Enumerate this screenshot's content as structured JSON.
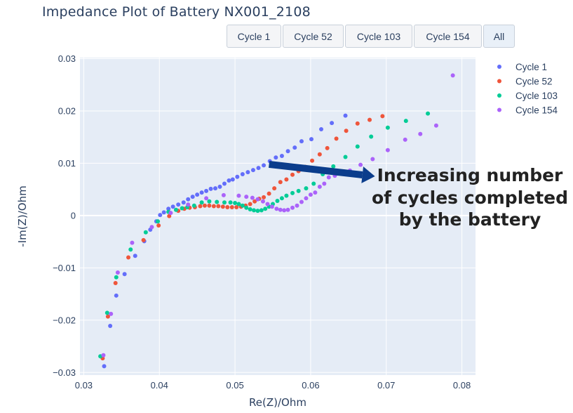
{
  "title": "Impedance Plot of Battery NX001_2108",
  "buttons": [
    {
      "label": "Cycle 1",
      "active": false
    },
    {
      "label": "Cycle 52",
      "active": false
    },
    {
      "label": "Cycle 103",
      "active": false
    },
    {
      "label": "Cycle 154",
      "active": false
    },
    {
      "label": "All",
      "active": true
    }
  ],
  "annotation": {
    "lines": [
      "Increasing number",
      "of cycles completed",
      "by the battery"
    ],
    "arrow_color": "#0b3d8c",
    "arrow_from": [
      0.0545,
      0.0098
    ],
    "arrow_to": [
      0.0685,
      0.0075
    ]
  },
  "chart_data": {
    "type": "scatter",
    "title": "Impedance Plot of Battery NX001_2108",
    "xlabel": "Re(Z)/Ohm",
    "ylabel": "-Im(Z)/Ohm",
    "xlim": [
      0.0295,
      0.0818
    ],
    "ylim": [
      -0.0305,
      0.0302
    ],
    "xticks": [
      0.03,
      0.04,
      0.05,
      0.06,
      0.07,
      0.08
    ],
    "xtick_labels": [
      "0.03",
      "0.04",
      "0.05",
      "0.06",
      "0.07",
      "0.08"
    ],
    "yticks": [
      -0.03,
      -0.02,
      -0.01,
      0,
      0.01,
      0.02,
      0.03
    ],
    "ytick_labels": [
      "−0.03",
      "−0.02",
      "−0.01",
      "0",
      "0.01",
      "0.02",
      "0.03"
    ],
    "grid": true,
    "legend_position": "top-right",
    "plot_bg": "#e5ecf6",
    "series": [
      {
        "name": "Cycle 1",
        "color": "#636efa",
        "points": [
          [
            0.0327,
            -0.0288
          ],
          [
            0.0335,
            -0.0211
          ],
          [
            0.0343,
            -0.0153
          ],
          [
            0.0354,
            -0.0112
          ],
          [
            0.0368,
            -0.0077
          ],
          [
            0.038,
            -0.0049
          ],
          [
            0.0388,
            -0.0027
          ],
          [
            0.0396,
            -0.0011
          ],
          [
            0.0401,
            0.0001
          ],
          [
            0.0406,
            0.0006
          ],
          [
            0.0412,
            0.0013
          ],
          [
            0.0418,
            0.0017
          ],
          [
            0.0425,
            0.0021
          ],
          [
            0.0432,
            0.0025
          ],
          [
            0.0438,
            0.0031
          ],
          [
            0.0444,
            0.0036
          ],
          [
            0.045,
            0.004
          ],
          [
            0.0456,
            0.0044
          ],
          [
            0.0462,
            0.0047
          ],
          [
            0.0468,
            0.0051
          ],
          [
            0.0474,
            0.0052
          ],
          [
            0.048,
            0.0055
          ],
          [
            0.0486,
            0.0061
          ],
          [
            0.0492,
            0.0067
          ],
          [
            0.0497,
            0.0069
          ],
          [
            0.0503,
            0.0074
          ],
          [
            0.051,
            0.0079
          ],
          [
            0.0517,
            0.0083
          ],
          [
            0.0524,
            0.0087
          ],
          [
            0.0531,
            0.0091
          ],
          [
            0.0538,
            0.0096
          ],
          [
            0.0546,
            0.0104
          ],
          [
            0.0554,
            0.0111
          ],
          [
            0.0562,
            0.0114
          ],
          [
            0.057,
            0.0123
          ],
          [
            0.0579,
            0.013
          ],
          [
            0.0588,
            0.0142
          ],
          [
            0.0601,
            0.0146
          ],
          [
            0.0614,
            0.0165
          ],
          [
            0.0628,
            0.0177
          ],
          [
            0.0646,
            0.0191
          ]
        ]
      },
      {
        "name": "Cycle 52",
        "color": "#ef553b",
        "points": [
          [
            0.0325,
            -0.0273
          ],
          [
            0.0332,
            -0.0193
          ],
          [
            0.0342,
            -0.0129
          ],
          [
            0.0359,
            -0.008
          ],
          [
            0.0379,
            -0.0047
          ],
          [
            0.0399,
            -0.0019
          ],
          [
            0.0413,
            -0.0001
          ],
          [
            0.0425,
            0.0009
          ],
          [
            0.0433,
            0.0013
          ],
          [
            0.044,
            0.0015
          ],
          [
            0.0447,
            0.0016
          ],
          [
            0.0454,
            0.0018
          ],
          [
            0.046,
            0.0019
          ],
          [
            0.0466,
            0.0019
          ],
          [
            0.0472,
            0.0018
          ],
          [
            0.0478,
            0.0018
          ],
          [
            0.0484,
            0.0017
          ],
          [
            0.049,
            0.0016
          ],
          [
            0.0496,
            0.0016
          ],
          [
            0.0502,
            0.0016
          ],
          [
            0.0508,
            0.0017
          ],
          [
            0.0514,
            0.0019
          ],
          [
            0.052,
            0.0022
          ],
          [
            0.0526,
            0.0027
          ],
          [
            0.0532,
            0.0032
          ],
          [
            0.0538,
            0.0035
          ],
          [
            0.0545,
            0.0042
          ],
          [
            0.0552,
            0.0052
          ],
          [
            0.056,
            0.0064
          ],
          [
            0.0568,
            0.0069
          ],
          [
            0.0576,
            0.0078
          ],
          [
            0.0584,
            0.0085
          ],
          [
            0.0593,
            0.0093
          ],
          [
            0.0602,
            0.0105
          ],
          [
            0.0612,
            0.0117
          ],
          [
            0.0622,
            0.0129
          ],
          [
            0.0634,
            0.0147
          ],
          [
            0.0647,
            0.0162
          ],
          [
            0.0662,
            0.0176
          ],
          [
            0.0678,
            0.0183
          ],
          [
            0.0695,
            0.019
          ]
        ]
      },
      {
        "name": "Cycle 103",
        "color": "#00cc96",
        "points": [
          [
            0.0322,
            -0.0269
          ],
          [
            0.0331,
            -0.0186
          ],
          [
            0.0343,
            -0.0118
          ],
          [
            0.0362,
            -0.0065
          ],
          [
            0.0382,
            -0.0032
          ],
          [
            0.0398,
            -0.0011
          ],
          [
            0.0412,
            0.0007
          ],
          [
            0.0422,
            0.0011
          ],
          [
            0.043,
            0.0014
          ],
          [
            0.0437,
            0.0016
          ],
          [
            0.0446,
            0.0019
          ],
          [
            0.0456,
            0.0025
          ],
          [
            0.0466,
            0.0027
          ],
          [
            0.0476,
            0.0026
          ],
          [
            0.0486,
            0.0025
          ],
          [
            0.0494,
            0.0025
          ],
          [
            0.05,
            0.0024
          ],
          [
            0.0505,
            0.0022
          ],
          [
            0.051,
            0.0019
          ],
          [
            0.0515,
            0.0015
          ],
          [
            0.052,
            0.0012
          ],
          [
            0.0525,
            0.001
          ],
          [
            0.053,
            0.0009
          ],
          [
            0.0535,
            0.001
          ],
          [
            0.054,
            0.0013
          ],
          [
            0.0545,
            0.0017
          ],
          [
            0.055,
            0.0022
          ],
          [
            0.0556,
            0.0028
          ],
          [
            0.0562,
            0.0033
          ],
          [
            0.0568,
            0.0038
          ],
          [
            0.0576,
            0.0043
          ],
          [
            0.0584,
            0.0047
          ],
          [
            0.0594,
            0.0052
          ],
          [
            0.0604,
            0.0061
          ],
          [
            0.0616,
            0.0079
          ],
          [
            0.063,
            0.0094
          ],
          [
            0.0646,
            0.0112
          ],
          [
            0.0662,
            0.0132
          ],
          [
            0.068,
            0.0151
          ],
          [
            0.0702,
            0.0168
          ],
          [
            0.0726,
            0.0181
          ],
          [
            0.0755,
            0.0195
          ]
        ]
      },
      {
        "name": "Cycle 154",
        "color": "#ab63fa",
        "points": [
          [
            0.0326,
            -0.0267
          ],
          [
            0.0336,
            -0.0188
          ],
          [
            0.0345,
            -0.0109
          ],
          [
            0.0364,
            -0.0052
          ],
          [
            0.039,
            -0.0022
          ],
          [
            0.0415,
            0.0005
          ],
          [
            0.0438,
            0.0021
          ],
          [
            0.0462,
            0.0033
          ],
          [
            0.0485,
            0.0039
          ],
          [
            0.0505,
            0.0038
          ],
          [
            0.0515,
            0.0036
          ],
          [
            0.0523,
            0.0034
          ],
          [
            0.053,
            0.0031
          ],
          [
            0.0537,
            0.0027
          ],
          [
            0.0543,
            0.0022
          ],
          [
            0.0549,
            0.0017
          ],
          [
            0.0555,
            0.0013
          ],
          [
            0.056,
            0.0011
          ],
          [
            0.0565,
            0.001
          ],
          [
            0.057,
            0.0011
          ],
          [
            0.0576,
            0.0015
          ],
          [
            0.0582,
            0.0019
          ],
          [
            0.0588,
            0.0026
          ],
          [
            0.0594,
            0.0033
          ],
          [
            0.06,
            0.004
          ],
          [
            0.0606,
            0.0044
          ],
          [
            0.0612,
            0.0055
          ],
          [
            0.0618,
            0.0061
          ],
          [
            0.0624,
            0.0073
          ],
          [
            0.0632,
            0.0076
          ],
          [
            0.064,
            0.0081
          ],
          [
            0.0652,
            0.0086
          ],
          [
            0.0666,
            0.0097
          ],
          [
            0.0682,
            0.0108
          ],
          [
            0.0702,
            0.0125
          ],
          [
            0.0725,
            0.0145
          ],
          [
            0.0745,
            0.0156
          ],
          [
            0.0766,
            0.0172
          ],
          [
            0.0788,
            0.0268
          ]
        ]
      }
    ]
  }
}
